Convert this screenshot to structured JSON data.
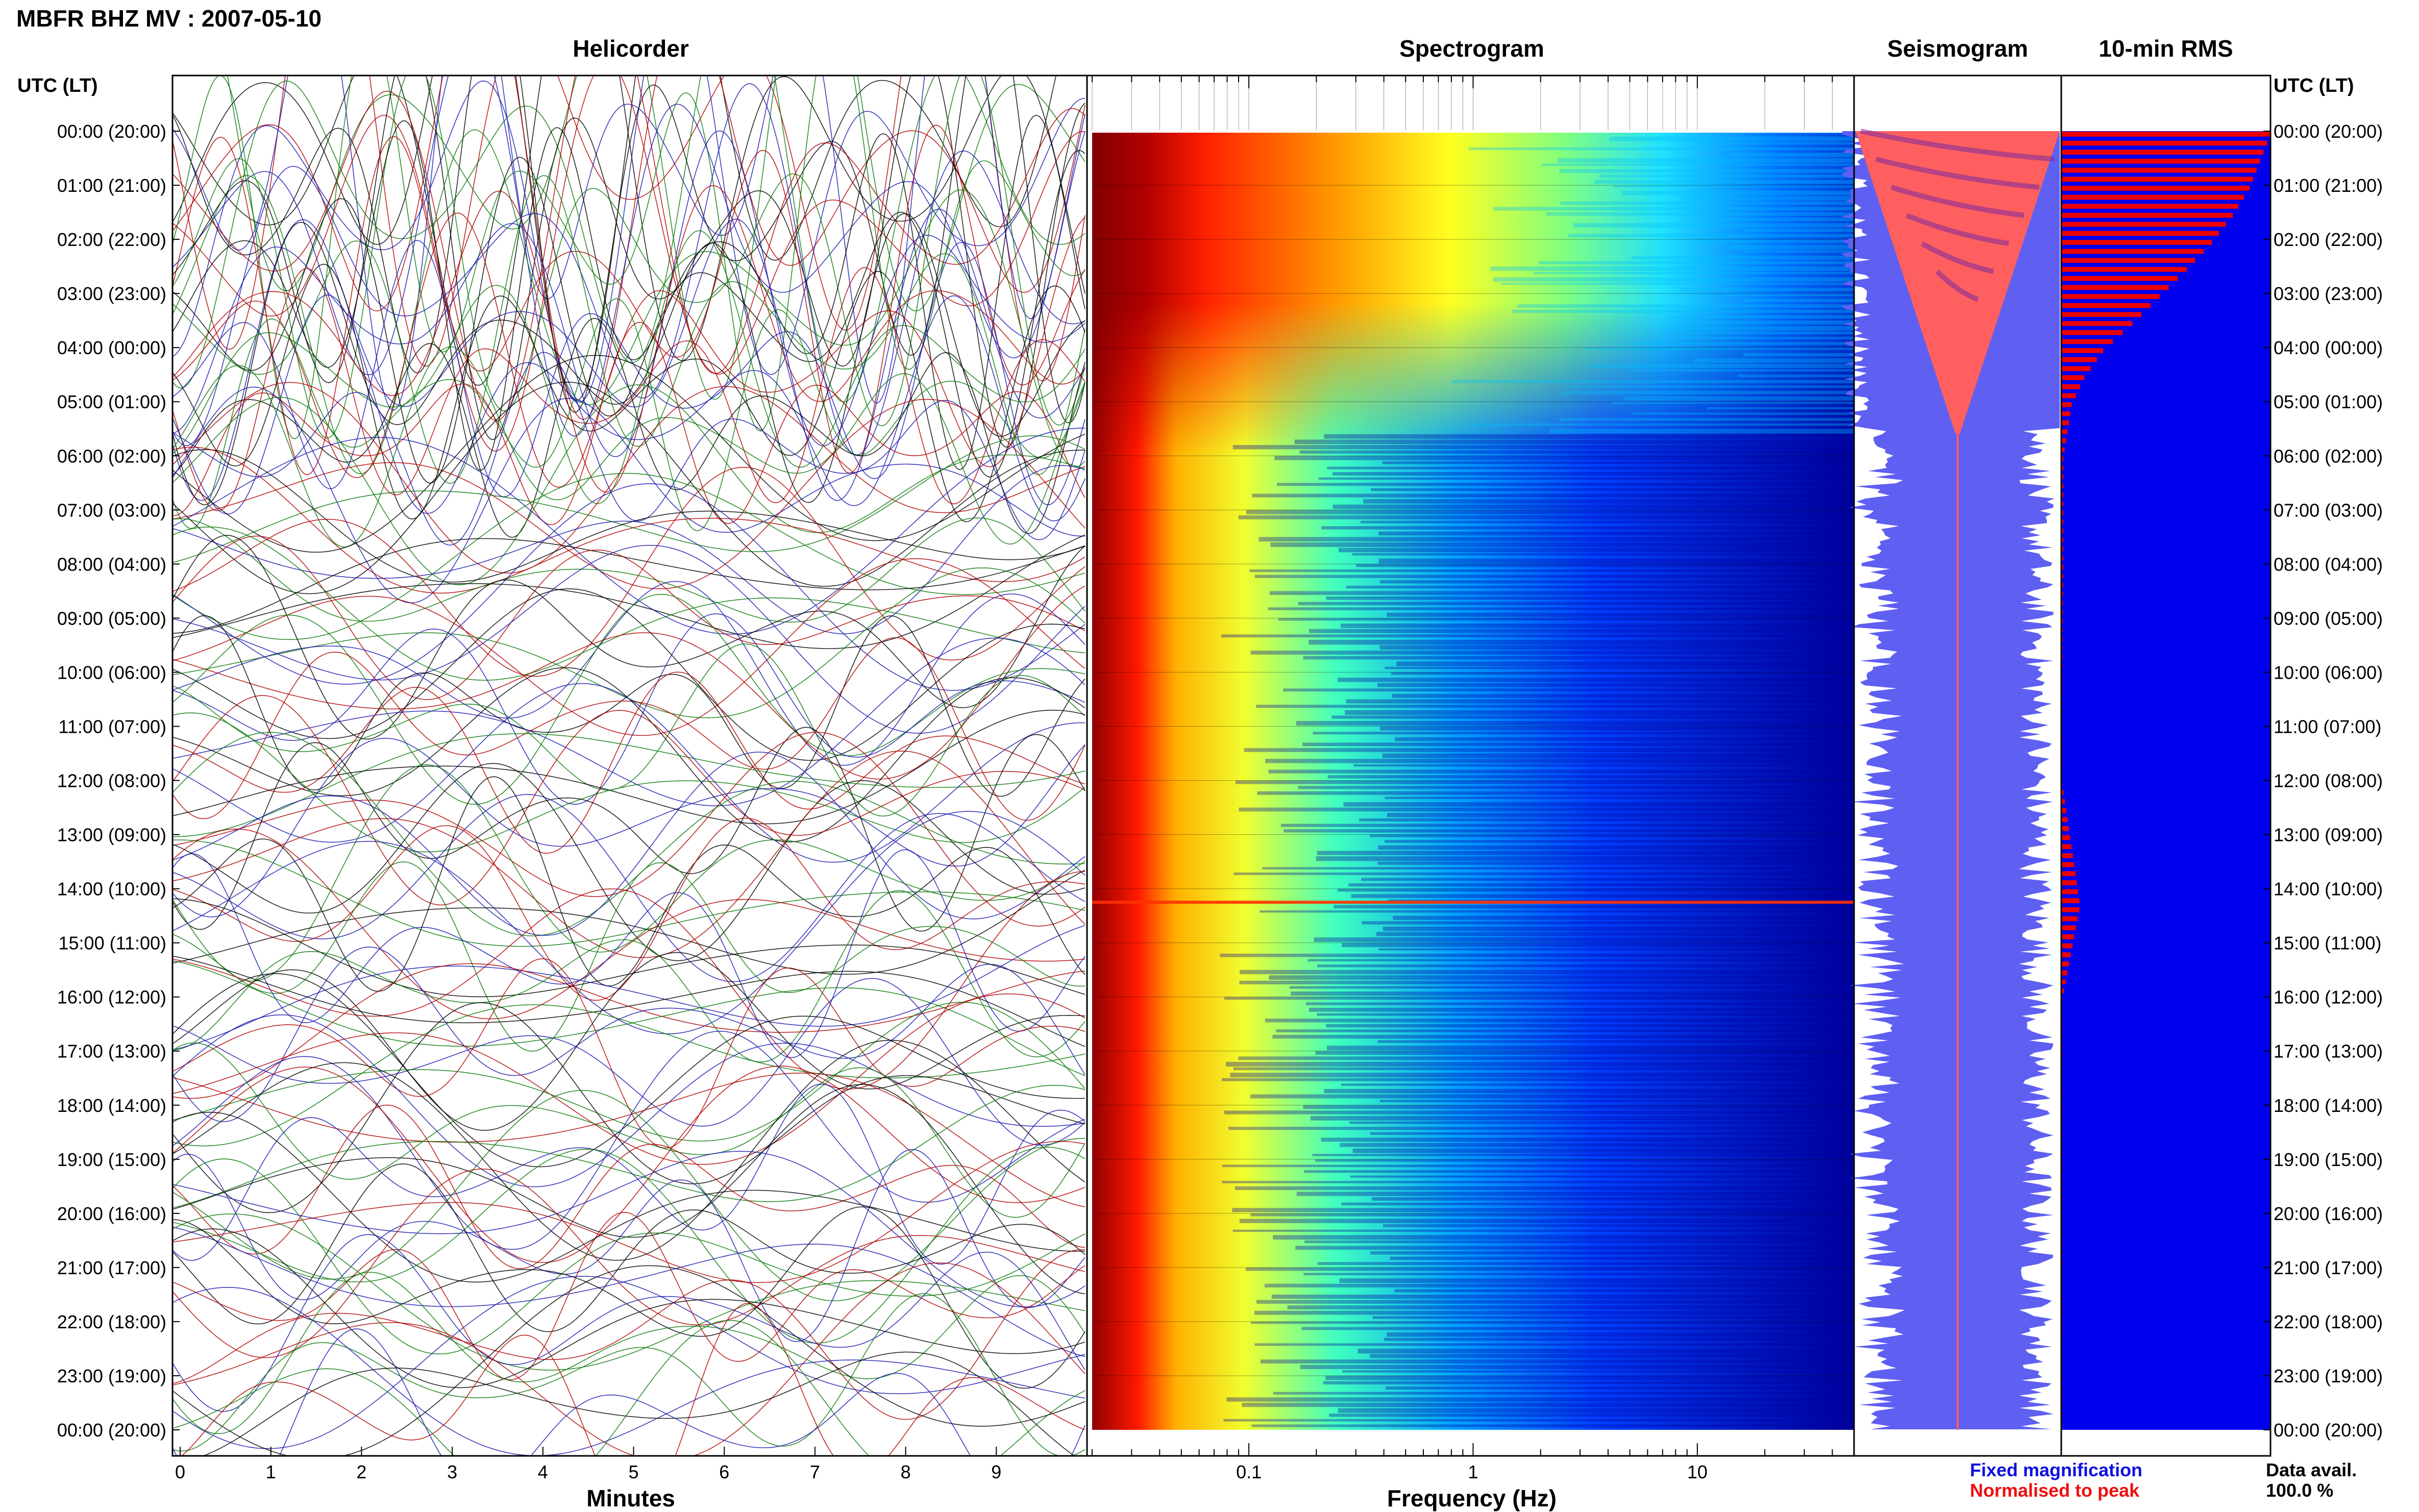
{
  "figure_title": "MBFR BHZ MV : 2007-05-10",
  "colors": {
    "helicorder_traces": [
      "#000000",
      "#b00000",
      "#0a7a0a",
      "#1a1ab0"
    ],
    "fixed_magnification": "#5f5ff2",
    "normalised_to_peak": "#ff5f5f",
    "rms_fill": "#0000ee",
    "rms_peak": "#ee0000"
  },
  "chart_data": [
    {
      "type": "line",
      "panel": "helicorder",
      "title": "Helicorder",
      "xlabel": "Minutes",
      "ylabel": "UTC (LT)",
      "xlim": [
        0,
        10
      ],
      "x_ticks": [
        "0",
        "1",
        "2",
        "3",
        "4",
        "5",
        "6",
        "7",
        "8",
        "9"
      ],
      "y_ticks": [
        "00:00 (20:00)",
        "01:00 (21:00)",
        "02:00 (22:00)",
        "03:00 (23:00)",
        "04:00 (00:00)",
        "05:00 (01:00)",
        "06:00 (02:00)",
        "07:00 (03:00)",
        "08:00 (04:00)",
        "09:00 (05:00)",
        "10:00 (06:00)",
        "11:00 (07:00)",
        "12:00 (08:00)",
        "13:00 (09:00)",
        "14:00 (10:00)",
        "15:00 (11:00)",
        "16:00 (12:00)",
        "17:00 (13:00)",
        "18:00 (14:00)",
        "19:00 (15:00)",
        "20:00 (16:00)",
        "21:00 (17:00)",
        "22:00 (18:00)",
        "23:00 (19:00)",
        "00:00 (20:00)"
      ]
    },
    {
      "type": "heatmap",
      "panel": "spectrogram",
      "title": "Spectrogram",
      "xlabel": "Frequency (Hz)",
      "x_scale": "log",
      "xlim": [
        0.02,
        50
      ],
      "x_ticks": [
        "0.1",
        "1",
        "10"
      ],
      "colormap": "jet",
      "notes": "Energy concentrated below 0.1 Hz; high broadband energy 00:00–05:00 UTC decaying with time; brief broadband line near 14:15 UTC"
    },
    {
      "type": "area",
      "panel": "seismogram",
      "title": "Seismogram",
      "series": [
        {
          "name": "Fixed magnification",
          "color": "#5f5ff2"
        },
        {
          "name": "Normalised to peak",
          "color": "#ff5f5f"
        }
      ]
    },
    {
      "type": "bar",
      "panel": "rms",
      "title": "10-min RMS",
      "orientation": "horizontal",
      "ylabel": "UTC (LT)",
      "hours_utc": [
        0,
        0.5,
        1,
        1.5,
        2,
        2.5,
        3,
        3.5,
        4,
        4.5,
        5,
        5.5,
        6,
        7,
        8,
        10,
        12,
        14.25,
        16,
        20,
        24
      ],
      "relative_rms": [
        1.0,
        0.95,
        0.9,
        0.82,
        0.72,
        0.6,
        0.47,
        0.34,
        0.2,
        0.11,
        0.05,
        0.03,
        0.01,
        0.01,
        0.01,
        0.005,
        0.005,
        0.09,
        0.005,
        0.005,
        0.005
      ]
    }
  ],
  "legend": {
    "fixed": "Fixed magnification",
    "normalised": "Normalised to peak"
  },
  "data_availability": {
    "label": "Data avail.",
    "value": "100.0 %"
  }
}
